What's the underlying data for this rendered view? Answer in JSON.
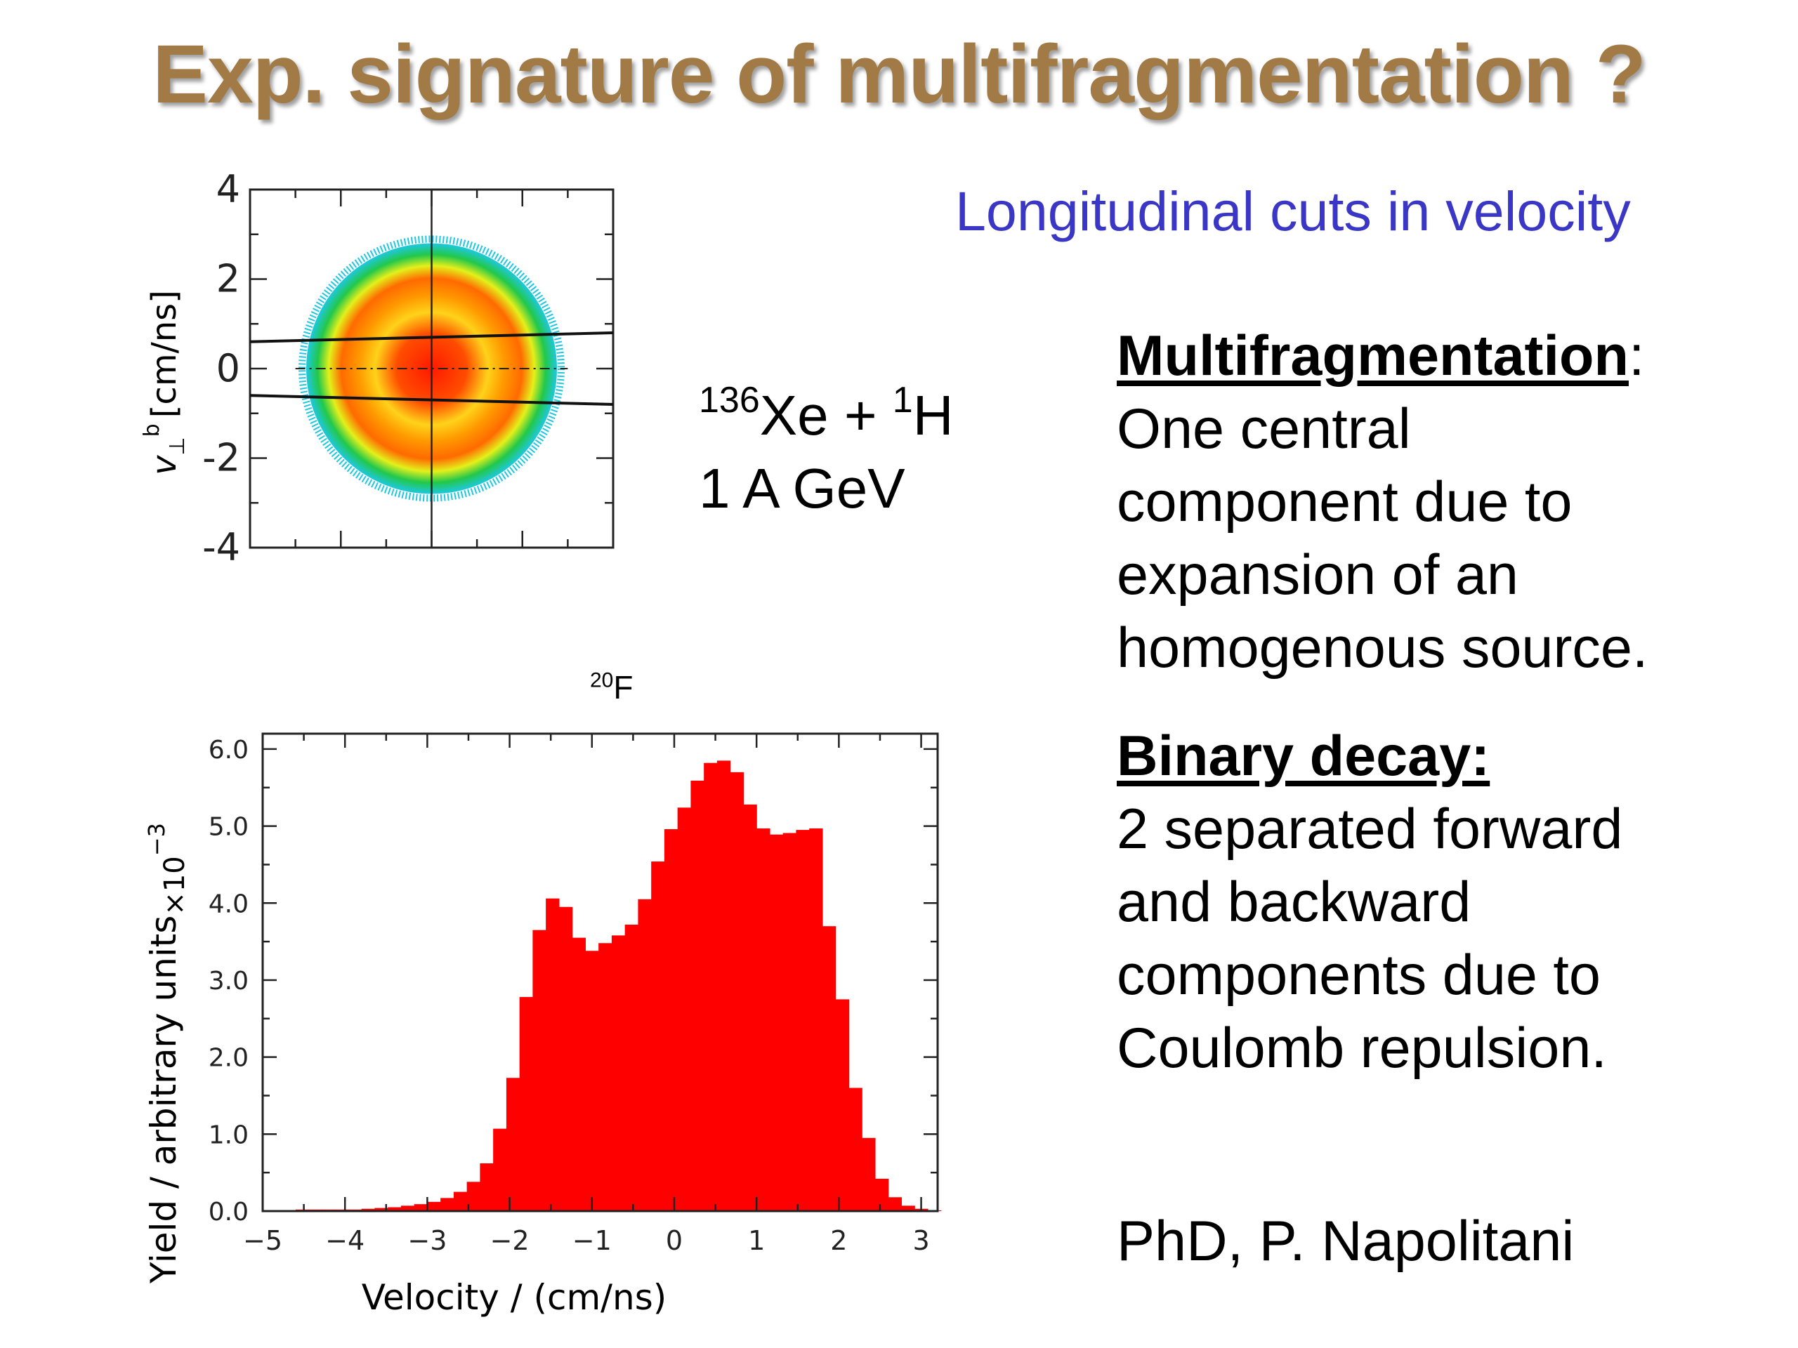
{
  "slide": {
    "title": "Exp. signature of multifragmentation ?",
    "subtitle": "Longitudinal cuts in velocity",
    "reaction": {
      "proj_mass": "136",
      "proj": "Xe + ",
      "target_mass": "1",
      "target": "H",
      "energy": "1 A GeV"
    },
    "multifragmentation": {
      "heading": "Multifragmentation",
      "colon": ":",
      "lines": [
        "One central",
        "component due to",
        "expansion of an",
        "homogenous source."
      ]
    },
    "binary_decay": {
      "heading": "Binary decay:",
      "lines": [
        "2 separated forward",
        "and backward",
        "components due to",
        "Coulomb repulsion."
      ]
    },
    "credit": "PhD, P. Napolitani",
    "histogram_label": {
      "mass": "20",
      "element": "F"
    },
    "colors": {
      "title": "#a27a45",
      "subtitle": "#3a36c6",
      "bars": "#ff0000"
    }
  },
  "chart_data": [
    {
      "type": "heatmap",
      "ylabel": "v⊥b [cm/ns]",
      "ylabel_main": "v",
      "ylabel_sub": "⊥",
      "ylabel_sup": "b",
      "ylabel_unit": "[cm/ns]",
      "ylim": [
        -4,
        4
      ],
      "xlim": [
        -4,
        4
      ],
      "yticks": [
        "4",
        "2",
        "0",
        "-2",
        "-4"
      ],
      "description_colors": [
        "#1ec8e0",
        "#22c84a",
        "#d8ea1a",
        "#ff8c00",
        "#ff1a00"
      ],
      "source": {
        "center": [
          0,
          0
        ],
        "radius": 2.8
      },
      "cut_lines": [
        {
          "x": [
            -4,
            4
          ],
          "y": [
            0.6,
            0.8
          ]
        },
        {
          "x": [
            -4,
            4
          ],
          "y": [
            -0.6,
            -0.8
          ]
        }
      ]
    },
    {
      "type": "bar",
      "xlabel": "Velocity / (cm/ns)",
      "ylabel": "Yield / arbitrary units",
      "ylabel_suffix": "×10",
      "ylabel_exp": "−3",
      "xlim": [
        -5,
        3.2
      ],
      "ylim": [
        0,
        6.2
      ],
      "xticks": [
        "−5",
        "−4",
        "−3",
        "−2",
        "−1",
        "0",
        "1",
        "2",
        "3"
      ],
      "yticks": [
        "0.0",
        "1.0",
        "2.0",
        "3.0",
        "4.0",
        "5.0",
        "6.0"
      ],
      "bin_width": 0.16,
      "bin_start": -4.92,
      "values": [
        0.01,
        0.01,
        0.02,
        0.02,
        0.02,
        0.02,
        0.02,
        0.03,
        0.04,
        0.05,
        0.07,
        0.09,
        0.12,
        0.17,
        0.25,
        0.38,
        0.62,
        1.07,
        1.73,
        2.78,
        3.65,
        4.06,
        3.95,
        3.55,
        3.38,
        3.48,
        3.58,
        3.72,
        4.05,
        4.54,
        4.96,
        5.24,
        5.59,
        5.82,
        5.85,
        5.7,
        5.28,
        4.97,
        4.89,
        4.91,
        4.95,
        4.97,
        3.7,
        2.75,
        1.6,
        0.95,
        0.42,
        0.18,
        0.07,
        0.03,
        0.01
      ]
    }
  ]
}
